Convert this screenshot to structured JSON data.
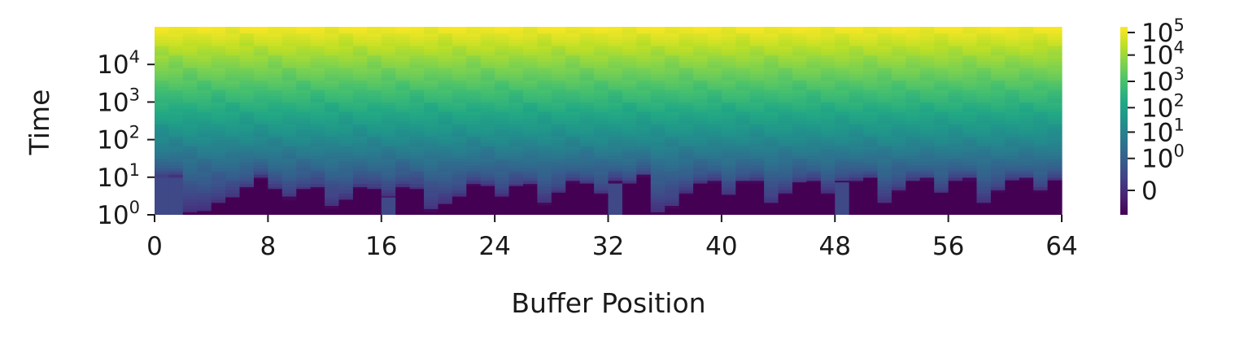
{
  "chart_data": {
    "type": "heatmap",
    "title": "",
    "xlabel": "Buffer Position",
    "ylabel": "Time",
    "x_tick_labels": [
      "0",
      "8",
      "16",
      "24",
      "32",
      "40",
      "48",
      "56",
      "64"
    ],
    "x_range": [
      0,
      64
    ],
    "y_scale": "log",
    "y_range": [
      1,
      100000
    ],
    "y_ticks": [
      {
        "base": "10",
        "exp": "0"
      },
      {
        "base": "10",
        "exp": "1"
      },
      {
        "base": "10",
        "exp": "2"
      },
      {
        "base": "10",
        "exp": "3"
      },
      {
        "base": "10",
        "exp": "4"
      }
    ],
    "colorbar": {
      "scale": "symlog",
      "colormap": "viridis",
      "tick_labels": [
        {
          "base": "",
          "exp": "",
          "text": "0"
        },
        {
          "base": "10",
          "exp": "0"
        },
        {
          "base": "10",
          "exp": "1"
        },
        {
          "base": "10",
          "exp": "2"
        },
        {
          "base": "10",
          "exp": "3"
        },
        {
          "base": "10",
          "exp": "4"
        },
        {
          "base": "10",
          "exp": "5"
        }
      ]
    },
    "column_last_write_time": [
      10,
      10,
      1.1,
      1.3,
      2,
      3,
      5,
      9,
      5,
      2.5,
      5,
      5,
      1.5,
      2.5,
      5,
      5,
      3,
      5,
      5,
      1.2,
      2,
      3,
      6,
      6,
      3,
      6,
      6,
      1.8,
      4,
      7,
      7,
      3.5,
      7,
      7,
      10,
      1.2,
      1.5,
      3.5,
      7,
      7,
      3.5,
      7,
      7,
      2,
      3.5,
      7.5,
      7.5,
      3.5,
      7.5,
      7.5,
      10,
      2,
      4,
      8,
      8,
      4,
      8,
      8,
      2,
      4,
      8.5,
      8.5,
      4,
      8.5
    ],
    "grid": false,
    "legend": "none"
  }
}
